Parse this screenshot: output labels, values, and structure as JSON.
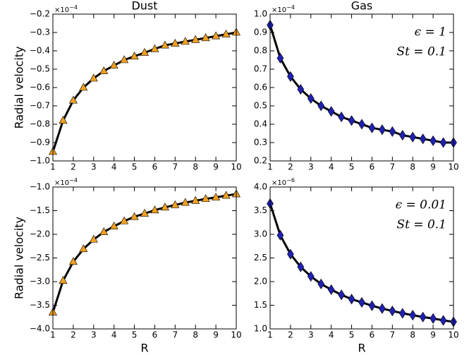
{
  "chart_data": [
    {
      "type": "line",
      "title": "Dust",
      "ylabel": "Radial velocity",
      "y_offset": {
        "base": "×10",
        "exponent": "−4"
      },
      "x": [
        1,
        1.5,
        2,
        2.5,
        3,
        3.5,
        4,
        4.5,
        5,
        5.5,
        6,
        6.5,
        7,
        7.5,
        8,
        8.5,
        9,
        9.5,
        10
      ],
      "xlim": [
        1,
        10
      ],
      "xticks": [
        1,
        2,
        3,
        4,
        5,
        6,
        7,
        8,
        9,
        10
      ],
      "ylim": [
        -1.0,
        -0.2
      ],
      "yticks": [
        {
          "value": -1.0,
          "label": "−1.0"
        },
        {
          "value": -0.9,
          "label": "−0.9"
        },
        {
          "value": -0.8,
          "label": "−0.8"
        },
        {
          "value": -0.7,
          "label": "−0.7"
        },
        {
          "value": -0.6,
          "label": "−0.6"
        },
        {
          "value": -0.5,
          "label": "−0.5"
        },
        {
          "value": -0.4,
          "label": "−0.4"
        },
        {
          "value": -0.3,
          "label": "−0.3"
        },
        {
          "value": -0.2,
          "label": "−0.2"
        }
      ],
      "series": [
        {
          "style": "line",
          "color": "#000000",
          "values": [
            -0.95,
            -0.78,
            -0.67,
            -0.6,
            -0.55,
            -0.51,
            -0.48,
            -0.45,
            -0.43,
            -0.41,
            -0.39,
            -0.37,
            -0.36,
            -0.35,
            -0.34,
            -0.33,
            -0.32,
            -0.31,
            -0.3
          ]
        },
        {
          "style": "marker",
          "marker": "triangle",
          "color": "#f0a020",
          "values": [
            -0.95,
            -0.78,
            -0.67,
            -0.6,
            -0.55,
            -0.51,
            -0.48,
            -0.45,
            -0.43,
            -0.41,
            -0.39,
            -0.37,
            -0.36,
            -0.35,
            -0.34,
            -0.33,
            -0.32,
            -0.31,
            -0.3
          ]
        }
      ]
    },
    {
      "type": "line",
      "title": "Gas",
      "y_offset": {
        "base": "×10",
        "exponent": "−4"
      },
      "annotations": [
        "ϵ = 1",
        "St = 0.1"
      ],
      "x": [
        1,
        1.5,
        2,
        2.5,
        3,
        3.5,
        4,
        4.5,
        5,
        5.5,
        6,
        6.5,
        7,
        7.5,
        8,
        8.5,
        9,
        9.5,
        10
      ],
      "xlim": [
        1,
        10
      ],
      "xticks": [
        1,
        2,
        3,
        4,
        5,
        6,
        7,
        8,
        9,
        10
      ],
      "ylim": [
        0.2,
        1.0
      ],
      "yticks": [
        0.2,
        0.3,
        0.4,
        0.5,
        0.6,
        0.7,
        0.8,
        0.9,
        {
          "value": 1.0,
          "label": "1.0"
        }
      ],
      "series": [
        {
          "style": "line",
          "color": "#000000",
          "values": [
            0.94,
            0.76,
            0.66,
            0.59,
            0.54,
            0.5,
            0.47,
            0.44,
            0.42,
            0.4,
            0.38,
            0.37,
            0.36,
            0.34,
            0.33,
            0.32,
            0.31,
            0.3,
            0.3
          ]
        },
        {
          "style": "marker",
          "marker": "diamond",
          "color": "#2020b0",
          "values": [
            0.94,
            0.76,
            0.66,
            0.59,
            0.54,
            0.5,
            0.47,
            0.44,
            0.42,
            0.4,
            0.38,
            0.37,
            0.36,
            0.34,
            0.33,
            0.32,
            0.31,
            0.3,
            0.3
          ]
        }
      ]
    },
    {
      "type": "line",
      "ylabel": "Radial velocity",
      "xlabel": "R",
      "y_offset": {
        "base": "×10",
        "exponent": "−4"
      },
      "x": [
        1,
        1.5,
        2,
        2.5,
        3,
        3.5,
        4,
        4.5,
        5,
        5.5,
        6,
        6.5,
        7,
        7.5,
        8,
        8.5,
        9,
        9.5,
        10
      ],
      "xlim": [
        1,
        10
      ],
      "xticks": [
        1,
        2,
        3,
        4,
        5,
        6,
        7,
        8,
        9,
        10
      ],
      "ylim": [
        -4.0,
        -1.0
      ],
      "yticks": [
        {
          "value": -4.0,
          "label": "−4.0"
        },
        {
          "value": -3.5,
          "label": "−3.5"
        },
        {
          "value": -3.0,
          "label": "−3.0"
        },
        {
          "value": -2.5,
          "label": "−2.5"
        },
        {
          "value": -2.0,
          "label": "−2.0"
        },
        {
          "value": -1.5,
          "label": "−1.5"
        },
        {
          "value": -1.0,
          "label": "−1.0"
        }
      ],
      "series": [
        {
          "style": "line",
          "color": "#000000",
          "values": [
            -3.65,
            -2.98,
            -2.58,
            -2.31,
            -2.11,
            -1.95,
            -1.83,
            -1.72,
            -1.63,
            -1.56,
            -1.49,
            -1.43,
            -1.38,
            -1.33,
            -1.29,
            -1.25,
            -1.22,
            -1.18,
            -1.15
          ]
        },
        {
          "style": "marker",
          "marker": "triangle",
          "color": "#f0a020",
          "values": [
            -3.65,
            -2.98,
            -2.58,
            -2.31,
            -2.11,
            -1.95,
            -1.83,
            -1.72,
            -1.63,
            -1.56,
            -1.49,
            -1.43,
            -1.38,
            -1.33,
            -1.29,
            -1.25,
            -1.22,
            -1.18,
            -1.15
          ]
        }
      ]
    },
    {
      "type": "line",
      "xlabel": "R",
      "y_offset": {
        "base": "×10",
        "exponent": "−6"
      },
      "annotations": [
        "ϵ = 0.01",
        "St = 0.1"
      ],
      "x": [
        1,
        1.5,
        2,
        2.5,
        3,
        3.5,
        4,
        4.5,
        5,
        5.5,
        6,
        6.5,
        7,
        7.5,
        8,
        8.5,
        9,
        9.5,
        10
      ],
      "xlim": [
        1,
        10
      ],
      "xticks": [
        1,
        2,
        3,
        4,
        5,
        6,
        7,
        8,
        9,
        10
      ],
      "ylim": [
        1.0,
        4.0
      ],
      "yticks": [
        {
          "value": 1.0,
          "label": "1.0"
        },
        1.5,
        {
          "value": 2.0,
          "label": "2.0"
        },
        2.5,
        {
          "value": 3.0,
          "label": "3.0"
        },
        3.5,
        {
          "value": 4.0,
          "label": "4.0"
        }
      ],
      "series": [
        {
          "style": "line",
          "color": "#000000",
          "values": [
            3.65,
            2.98,
            2.58,
            2.31,
            2.11,
            1.95,
            1.83,
            1.72,
            1.63,
            1.56,
            1.49,
            1.43,
            1.38,
            1.33,
            1.29,
            1.25,
            1.22,
            1.18,
            1.15
          ]
        },
        {
          "style": "marker",
          "marker": "diamond",
          "color": "#2020b0",
          "values": [
            3.65,
            2.98,
            2.58,
            2.31,
            2.11,
            1.95,
            1.83,
            1.72,
            1.63,
            1.56,
            1.49,
            1.43,
            1.38,
            1.33,
            1.29,
            1.25,
            1.22,
            1.18,
            1.15
          ]
        }
      ]
    }
  ]
}
